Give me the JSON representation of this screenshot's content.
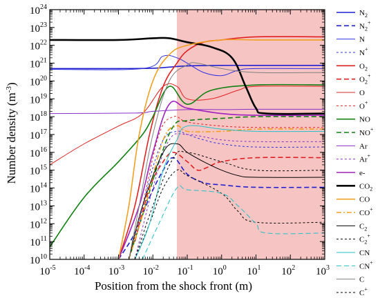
{
  "chart_data": {
    "type": "line",
    "xlabel": "Position from the shock front (m)",
    "ylabel_main": "Number density (m",
    "ylabel_exp": "-3",
    "ylabel_tail": ")",
    "x_scale": "log",
    "y_scale": "log",
    "xlim": [
      1e-05,
      1000
    ],
    "ylim": [
      10000000000.0,
      1e+24
    ],
    "x_ticks": [
      {
        "value": 1e-05,
        "base": "10",
        "exp": "-5"
      },
      {
        "value": 0.0001,
        "base": "10",
        "exp": "-4"
      },
      {
        "value": 0.001,
        "base": "10",
        "exp": "-3"
      },
      {
        "value": 0.01,
        "base": "10",
        "exp": "-2"
      },
      {
        "value": 0.1,
        "base": "10",
        "exp": "-1"
      },
      {
        "value": 1,
        "base": "10",
        "exp": "0"
      },
      {
        "value": 10,
        "base": "10",
        "exp": "1"
      },
      {
        "value": 100,
        "base": "10",
        "exp": "2"
      },
      {
        "value": 1000,
        "base": "10",
        "exp": "3"
      }
    ],
    "y_ticks": [
      {
        "value": 10000000000.0,
        "base": "10",
        "exp": "10"
      },
      {
        "value": 100000000000.0,
        "base": "10",
        "exp": "11"
      },
      {
        "value": 1000000000000.0,
        "base": "10",
        "exp": "12"
      },
      {
        "value": 10000000000000.0,
        "base": "10",
        "exp": "13"
      },
      {
        "value": 100000000000000.0,
        "base": "10",
        "exp": "14"
      },
      {
        "value": 1000000000000000.0,
        "base": "10",
        "exp": "15"
      },
      {
        "value": 1e+16,
        "base": "10",
        "exp": "16"
      },
      {
        "value": 1e+17,
        "base": "10",
        "exp": "17"
      },
      {
        "value": 1e+18,
        "base": "10",
        "exp": "18"
      },
      {
        "value": 1e+19,
        "base": "10",
        "exp": "19"
      },
      {
        "value": 1e+20,
        "base": "10",
        "exp": "20"
      },
      {
        "value": 1e+21,
        "base": "10",
        "exp": "21"
      },
      {
        "value": 1e+22,
        "base": "10",
        "exp": "22"
      },
      {
        "value": 1e+23,
        "base": "10",
        "exp": "23"
      },
      {
        "value": 1e+24,
        "base": "10",
        "exp": "24"
      }
    ],
    "shaded_region": {
      "x_start": 0.05,
      "x_end": 1000,
      "color": "#f7c4c4"
    },
    "grid": false,
    "legend_position": "right",
    "series": [
      {
        "name_base": "N",
        "name_sub": "2",
        "name_sup": "",
        "color": "#1f1fd0",
        "dash": "solid",
        "width": 1.6,
        "points": [
          [
            1e-05,
            5e+20
          ],
          [
            0.001,
            5e+20
          ],
          [
            0.01,
            5.2e+20
          ],
          [
            0.03,
            6e+20
          ],
          [
            0.1,
            7e+20
          ],
          [
            1,
            7.5e+20
          ],
          [
            10,
            7.5e+20
          ],
          [
            1000,
            7.5e+20
          ]
        ]
      },
      {
        "name_base": "N",
        "name_sub": "2",
        "name_sup": "+",
        "color": "#1f1fd0",
        "dash": "long",
        "width": 1.6,
        "points": [
          [
            0.001,
            10000000000.0
          ],
          [
            0.003,
            300000000000.0
          ],
          [
            0.008,
            30000000000000.0
          ],
          [
            0.02,
            1000000000000000.0
          ],
          [
            0.04,
            5000000000000000.0
          ],
          [
            0.1,
            600000000000000.0
          ],
          [
            0.3,
            200000000000000.0
          ],
          [
            1,
            150000000000000.0
          ],
          [
            10,
            110000000000000.0
          ],
          [
            1000,
            110000000000000.0
          ]
        ]
      },
      {
        "name_base": "N",
        "name_sub": "",
        "name_sup": "",
        "color": "#3030e0",
        "dash": "solid",
        "width": 1.0,
        "points": [
          [
            1e-05,
            4.5e+20
          ],
          [
            0.005,
            5e+20
          ],
          [
            0.02,
            2.5e+21
          ],
          [
            0.05,
            2e+21
          ],
          [
            0.1,
            1e+21
          ],
          [
            0.3,
            3e+20
          ],
          [
            1,
            2e+20
          ],
          [
            3,
            4e+20
          ],
          [
            10,
            5e+20
          ],
          [
            1000,
            5e+20
          ]
        ]
      },
      {
        "name_base": "N",
        "name_sub": "",
        "name_sup": "+",
        "color": "#3030e0",
        "dash": "short",
        "width": 1.0,
        "points": [
          [
            0.003,
            100000000000.0
          ],
          [
            0.008,
            300000000000000.0
          ],
          [
            0.02,
            5e+16
          ],
          [
            0.05,
            1.5e+17
          ],
          [
            0.1,
            1e+17
          ],
          [
            0.3,
            5e+16
          ],
          [
            1,
            3e+16
          ],
          [
            10,
            2e+16
          ],
          [
            1000,
            2e+16
          ]
        ]
      },
      {
        "name_base": "O",
        "name_sub": "2",
        "name_sup": "",
        "color": "#e02020",
        "dash": "solid",
        "width": 1.6,
        "points": [
          [
            0.001,
            10000000000.0
          ],
          [
            0.003,
            10000000000000.0
          ],
          [
            0.008,
            1e+17
          ],
          [
            0.02,
            5e+19
          ],
          [
            0.05,
            1e+21
          ],
          [
            0.1,
            5e+21
          ],
          [
            0.3,
            1.5e+22
          ],
          [
            1,
            2e+22
          ],
          [
            10,
            3e+22
          ],
          [
            1000,
            3e+22
          ]
        ]
      },
      {
        "name_base": "O",
        "name_sub": "2",
        "name_sup": "+",
        "color": "#e02020",
        "dash": "long",
        "width": 1.6,
        "points": [
          [
            0.003,
            100000000000.0
          ],
          [
            0.008,
            100000000000000.0
          ],
          [
            0.02,
            3000000000000000.0
          ],
          [
            0.04,
            1e+16
          ],
          [
            0.1,
            3000000000000000.0
          ],
          [
            0.2,
            1000000000000000.0
          ],
          [
            0.4,
            1500000000000000.0
          ],
          [
            1,
            3000000000000000.0
          ],
          [
            10,
            5000000000000000.0
          ],
          [
            1000,
            5000000000000000.0
          ]
        ]
      },
      {
        "name_base": "O",
        "name_sub": "",
        "name_sup": "",
        "color": "#e02020",
        "dash": "solid",
        "width": 1.0,
        "points": [
          [
            1e-05,
            2000000000000000.0
          ],
          [
            0.0001,
            3e+16
          ],
          [
            0.001,
            3e+17
          ],
          [
            0.005,
            1.5e+18
          ],
          [
            0.02,
            5e+19
          ],
          [
            0.05,
            5e+19
          ],
          [
            0.1,
            1e+19
          ],
          [
            0.5,
            1e+19
          ],
          [
            3,
            3e+19
          ],
          [
            10,
            5e+19
          ],
          [
            1000,
            5e+19
          ]
        ]
      },
      {
        "name_base": "O",
        "name_sub": "",
        "name_sup": "+",
        "color": "#e02020",
        "dash": "short",
        "width": 1.0,
        "points": [
          [
            0.002,
            10000000000.0
          ],
          [
            0.005,
            10000000000000.0
          ],
          [
            0.015,
            1e+17
          ],
          [
            0.04,
            1e+18
          ],
          [
            0.1,
            5e+17
          ],
          [
            1,
            3e+17
          ],
          [
            10,
            2.5e+17
          ],
          [
            1000,
            2.5e+17
          ]
        ]
      },
      {
        "name_base": "NO",
        "name_sub": "",
        "name_sup": "",
        "color": "#108010",
        "dash": "solid",
        "width": 1.6,
        "points": [
          [
            1e-05,
            50000000000.0
          ],
          [
            0.0001,
            30000000000000.0
          ],
          [
            0.001,
            3000000000000000.0
          ],
          [
            0.005,
            1e+17
          ],
          [
            0.01,
            1e+18
          ],
          [
            0.03,
            5e+19
          ],
          [
            0.1,
            5e+18
          ],
          [
            0.5,
            3e+19
          ],
          [
            10,
            6e+19
          ],
          [
            1000,
            6e+19
          ]
        ]
      },
      {
        "name_base": "NO",
        "name_sub": "",
        "name_sup": "+",
        "color": "#108010",
        "dash": "long",
        "width": 1.6,
        "points": [
          [
            0.002,
            10000000000.0
          ],
          [
            0.005,
            3000000000000.0
          ],
          [
            0.015,
            3000000000000000.0
          ],
          [
            0.04,
            3e+17
          ],
          [
            0.1,
            6e+17
          ],
          [
            1,
            8e+17
          ],
          [
            10,
            1e+18
          ],
          [
            1000,
            1e+18
          ]
        ]
      },
      {
        "name_base": "Ar",
        "name_sub": "",
        "name_sup": "",
        "color": "#8b30c8",
        "dash": "solid",
        "width": 1.0,
        "points": [
          [
            1e-05,
            1.5e+18
          ],
          [
            0.003,
            1.6e+18
          ],
          [
            0.01,
            2e+18
          ],
          [
            0.1,
            2.5e+18
          ],
          [
            1,
            2.5e+18
          ],
          [
            10,
            2.6e+18
          ],
          [
            1000,
            2.6e+18
          ]
        ]
      },
      {
        "name_base": "Ar",
        "name_sub": "",
        "name_sup": "+",
        "color": "#8b30c8",
        "dash": "short",
        "width": 1.0,
        "points": [
          [
            0.003,
            10000000000.0
          ],
          [
            0.01,
            100000000000000.0
          ],
          [
            0.03,
            5e+16
          ],
          [
            0.1,
            1e+17
          ],
          [
            1,
            5e+16
          ],
          [
            10,
            4e+16
          ],
          [
            1000,
            4e+16
          ]
        ]
      },
      {
        "name_base": "e-",
        "name_sub": "",
        "name_sup": "",
        "color": "#a020c0",
        "dash": "solid",
        "width": 1.6,
        "points": [
          [
            0.001,
            10000000000.0
          ],
          [
            0.004,
            10000000000000.0
          ],
          [
            0.01,
            1e+16
          ],
          [
            0.03,
            5e+18
          ],
          [
            0.1,
            3e+18
          ],
          [
            1,
            1.5e+18
          ],
          [
            10,
            1.2e+18
          ],
          [
            1000,
            1.2e+18
          ]
        ]
      },
      {
        "name_base": "CO",
        "name_sub": "2",
        "name_sup": "",
        "color": "#000000",
        "dash": "solid",
        "width": 2.6,
        "points": [
          [
            1e-05,
            2e+22
          ],
          [
            0.001,
            2e+22
          ],
          [
            0.01,
            2.5e+22
          ],
          [
            0.03,
            2.5e+22
          ],
          [
            0.1,
            1.5e+22
          ],
          [
            0.5,
            8e+21
          ],
          [
            2,
            2e+21
          ],
          [
            5,
            5e+19
          ],
          [
            10,
            3e+18
          ],
          [
            20,
            1.5e+18
          ],
          [
            1000,
            1.5e+18
          ]
        ]
      },
      {
        "name_base": "CO",
        "name_sub": "",
        "name_sup": "",
        "color": "#f0a020",
        "dash": "solid",
        "width": 1.6,
        "points": [
          [
            0.001,
            10000000000.0
          ],
          [
            0.002,
            10000000000000.0
          ],
          [
            0.004,
            1e+17
          ],
          [
            0.01,
            1e+20
          ],
          [
            0.03,
            3e+21
          ],
          [
            0.1,
            1e+22
          ],
          [
            1,
            2e+22
          ],
          [
            10,
            2e+22
          ],
          [
            1000,
            2e+22
          ]
        ]
      },
      {
        "name_base": "CO",
        "name_sub": "",
        "name_sup": "+",
        "color": "#f0a020",
        "dash": "dashdot",
        "width": 1.6,
        "points": [
          [
            0.002,
            10000000000.0
          ],
          [
            0.006,
            10000000000000.0
          ],
          [
            0.02,
            5e+16
          ],
          [
            0.05,
            3e+17
          ],
          [
            0.1,
            1.5e+17
          ],
          [
            1,
            1.5e+17
          ],
          [
            10,
            2e+17
          ],
          [
            1000,
            2e+17
          ]
        ]
      },
      {
        "name_base": "C",
        "name_sub": "2",
        "name_sup": "",
        "color": "#000000",
        "dash": "solid",
        "width": 1.0,
        "points": [
          [
            0.002,
            10000000000.0
          ],
          [
            0.005,
            10000000000000.0
          ],
          [
            0.02,
            1e+16
          ],
          [
            0.05,
            3e+16
          ],
          [
            0.1,
            1e+16
          ],
          [
            0.3,
            3000000000000000.0
          ],
          [
            1,
            1000000000000000.0
          ],
          [
            3,
            500000000000000.0
          ],
          [
            10,
            400000000000000.0
          ],
          [
            1000,
            400000000000000.0
          ]
        ]
      },
      {
        "name_base": "C",
        "name_sub": "2",
        "name_sup": "+",
        "color": "#000000",
        "dash": "short",
        "width": 1.0,
        "points": [
          [
            0.003,
            10000000000.0
          ],
          [
            0.008,
            1000000000000.0
          ],
          [
            0.02,
            100000000000000.0
          ],
          [
            0.05,
            1000000000000000.0
          ],
          [
            0.1,
            500000000000000.0
          ],
          [
            1,
            50000000000000.0
          ],
          [
            3,
            5000000000000.0
          ],
          [
            10,
            1200000000000.0
          ],
          [
            1000,
            1200000000000.0
          ]
        ]
      },
      {
        "name_base": "CN",
        "name_sub": "",
        "name_sup": "",
        "color": "#20c0c8",
        "dash": "solid",
        "width": 1.0,
        "points": [
          [
            0.003,
            10000000000.0
          ],
          [
            0.008,
            1000000000000.0
          ],
          [
            0.02,
            1000000000000000.0
          ],
          [
            0.05,
            5e+16
          ],
          [
            0.1,
            3e+17
          ],
          [
            1,
            2e+17
          ],
          [
            10,
            1.5e+17
          ],
          [
            1000,
            1.5e+17
          ]
        ]
      },
      {
        "name_base": "CN",
        "name_sub": "",
        "name_sup": "+",
        "color": "#20c0c8",
        "dash": "long",
        "width": 1.0,
        "points": [
          [
            0.005,
            10000000000.0
          ],
          [
            0.015,
            1000000000000.0
          ],
          [
            0.05,
            100000000000000.0
          ],
          [
            0.1,
            80000000000000.0
          ],
          [
            1,
            50000000000000.0
          ],
          [
            3,
            10000000000000.0
          ],
          [
            10,
            1000000000000.0
          ],
          [
            20,
            300000000000.0
          ],
          [
            1000,
            300000000000.0
          ]
        ]
      },
      {
        "name_base": "C",
        "name_sub": "",
        "name_sup": "",
        "color": "#808080",
        "dash": "solid",
        "width": 1.0,
        "points": [
          [
            0.002,
            10000000000.0
          ],
          [
            0.004,
            10000000000000.0
          ],
          [
            0.01,
            1e+17
          ],
          [
            0.03,
            1e+20
          ],
          [
            0.1,
            8e+20
          ],
          [
            0.2,
            1e+21
          ],
          [
            1,
            5e+20
          ],
          [
            10,
            3e+20
          ],
          [
            1000,
            3e+20
          ]
        ]
      },
      {
        "name_base": "C",
        "name_sub": "",
        "name_sup": "+",
        "color": "#000000",
        "dash": "short",
        "width": 1.0,
        "points": [
          [
            0.003,
            10000000000.0
          ],
          [
            0.01,
            10000000000000.0
          ],
          [
            0.04,
            5000000000000000.0
          ],
          [
            0.1,
            1e+16
          ],
          [
            1,
            3000000000000000.0
          ],
          [
            10,
            1000000000000000.0
          ],
          [
            1000,
            1000000000000000.0
          ]
        ]
      }
    ]
  }
}
